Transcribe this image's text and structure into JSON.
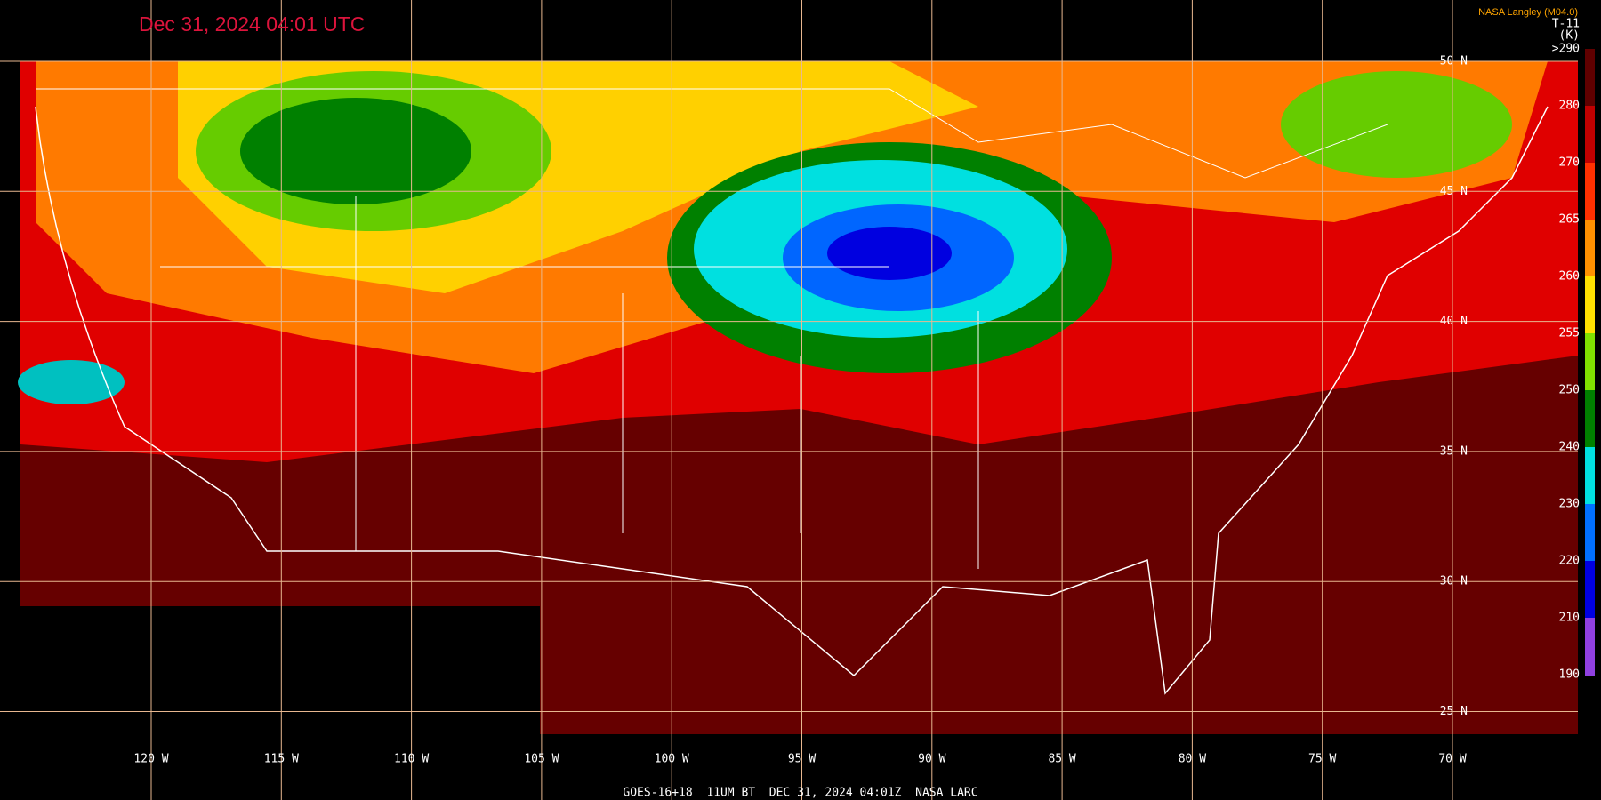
{
  "header": {
    "title": "Dec 31, 2024 04:01 UTC",
    "credit": "NASA Langley (M04.0)"
  },
  "colorbar": {
    "title": "T-11",
    "unit": "(K)",
    "ticks": [
      ">290",
      "280",
      "270",
      "265",
      "260",
      "255",
      "250",
      "240",
      "230",
      "220",
      "210",
      "190"
    ]
  },
  "grid": {
    "latitudes": [
      "50 N",
      "45 N",
      "40 N",
      "35 N",
      "30 N",
      "25 N"
    ],
    "longitudes": [
      "120 W",
      "115 W",
      "110 W",
      "105 W",
      "100 W",
      "95 W",
      "90 W",
      "85 W",
      "80 W",
      "75 W",
      "70 W"
    ]
  },
  "footer": "GOES-16+18  11UM BT  DEC 31, 2024 04:01Z  NASA LARC"
}
